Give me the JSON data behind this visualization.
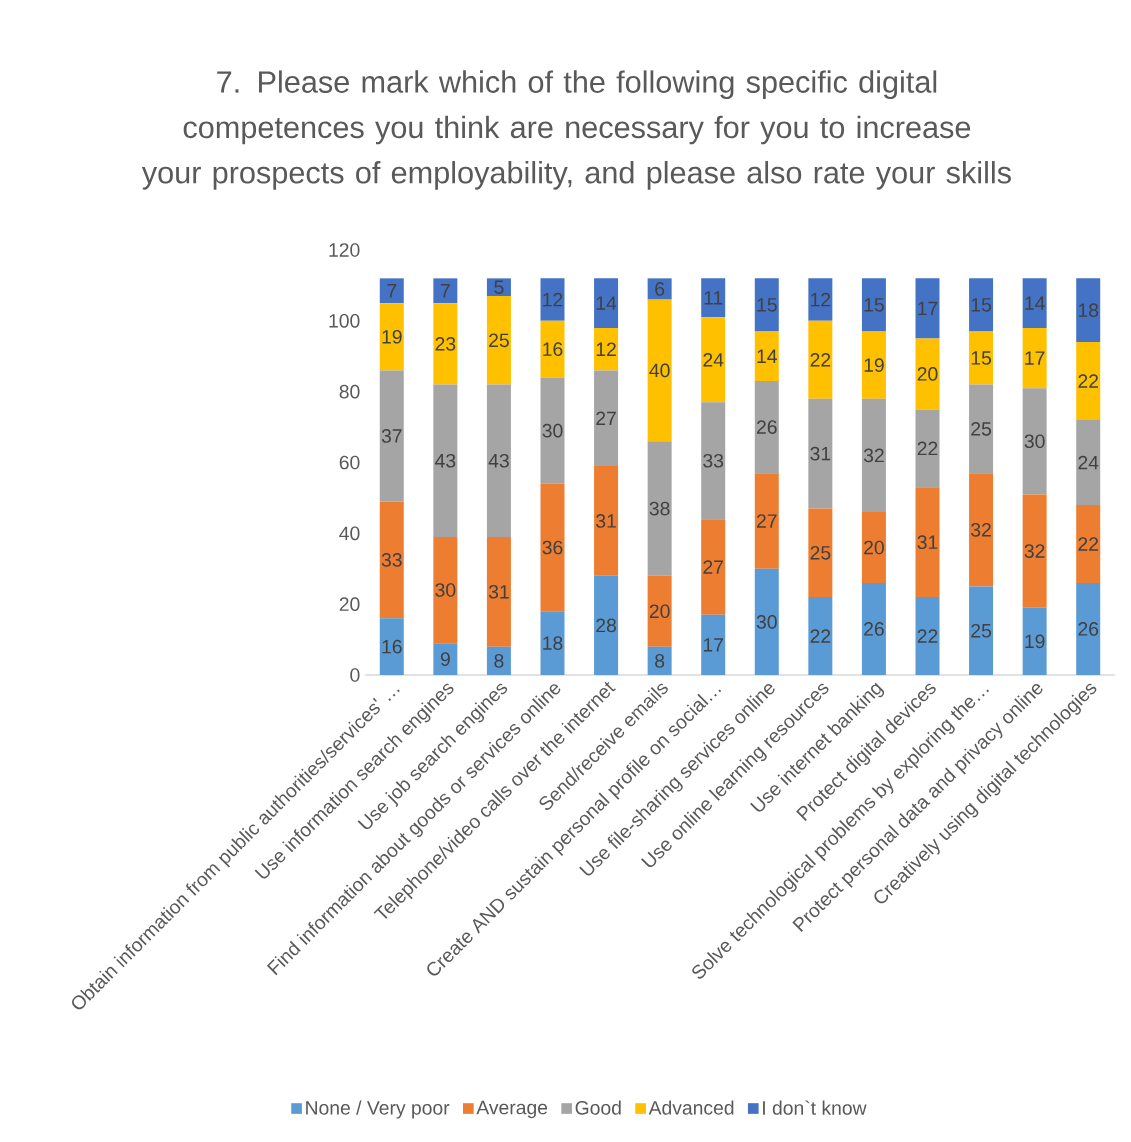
{
  "chart_data": {
    "type": "bar",
    "title": "7. Please mark which of the following specific digital competences you think are necessary for you to increase your prospects of employability, and please also rate your skills",
    "categories": [
      "Obtain information from public authorities/services' …",
      "Use information search engines",
      "Use job search engines",
      "Find information about goods or services online",
      "Telephone/video calls over the internet",
      "Send/receive emails",
      "Create AND sustain personal profile on social…",
      "Use file-sharing services online",
      "Use online learning resources",
      "Use internet banking",
      "Protect digital devices",
      "Solve technological problems by exploring the…",
      "Protect personal data and privacy online",
      "Creatively using digital technologies"
    ],
    "series": [
      {
        "name": "None / Very poor",
        "color": "#5b9bd5",
        "values": [
          16,
          9,
          8,
          18,
          28,
          8,
          17,
          30,
          22,
          26,
          22,
          25,
          19,
          26
        ]
      },
      {
        "name": "Average",
        "color": "#ed7d31",
        "values": [
          33,
          30,
          31,
          36,
          31,
          20,
          27,
          27,
          25,
          20,
          31,
          32,
          32,
          22
        ]
      },
      {
        "name": "Good",
        "color": "#a5a5a5",
        "values": [
          37,
          43,
          43,
          30,
          27,
          38,
          33,
          26,
          31,
          32,
          22,
          25,
          30,
          24
        ]
      },
      {
        "name": "Advanced",
        "color": "#ffc000",
        "values": [
          19,
          23,
          25,
          16,
          12,
          40,
          24,
          14,
          22,
          19,
          20,
          15,
          17,
          22
        ]
      },
      {
        "name": "I don`t know",
        "color": "#4472c4",
        "values": [
          7,
          7,
          5,
          12,
          14,
          6,
          11,
          15,
          12,
          15,
          17,
          15,
          14,
          18
        ]
      }
    ],
    "stacked": true,
    "data_labels": true,
    "legend": "bottom",
    "ylim": [
      0,
      120
    ],
    "yticks": [
      0,
      20,
      40,
      60,
      80,
      100,
      120
    ]
  }
}
